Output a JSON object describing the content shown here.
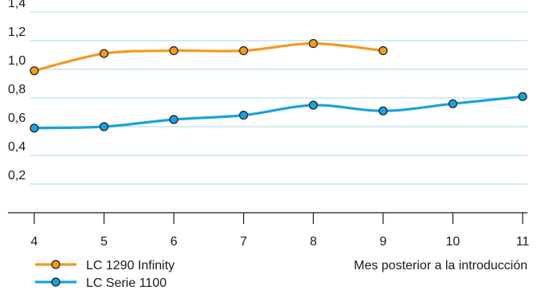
{
  "chart_data": {
    "type": "line",
    "title": "",
    "xlabel": "Mes posterior a la introducción",
    "ylabel": "",
    "x_ticks": [
      "4",
      "5",
      "6",
      "7",
      "8",
      "9",
      "10",
      "11"
    ],
    "y_ticks": [
      "0,2",
      "0,4",
      "0,6",
      "0,8",
      "1,0",
      "1,2",
      "1,4"
    ],
    "xlim": [
      4,
      11
    ],
    "ylim": [
      0,
      1.4
    ],
    "grid": "horizontal",
    "legend_placement": "bottom-left",
    "series": [
      {
        "name": "LC 1290 Infinity",
        "color": "#f39a1f",
        "x": [
          4,
          5,
          6,
          7,
          8,
          9
        ],
        "y": [
          0.99,
          1.11,
          1.13,
          1.13,
          1.18,
          1.13
        ]
      },
      {
        "name": "LC Serie 1100",
        "color": "#1ba2dc",
        "x": [
          4,
          5,
          6,
          7,
          8,
          9,
          10,
          11
        ],
        "y": [
          0.59,
          0.6,
          0.65,
          0.68,
          0.75,
          0.71,
          0.76,
          0.81
        ]
      }
    ]
  }
}
